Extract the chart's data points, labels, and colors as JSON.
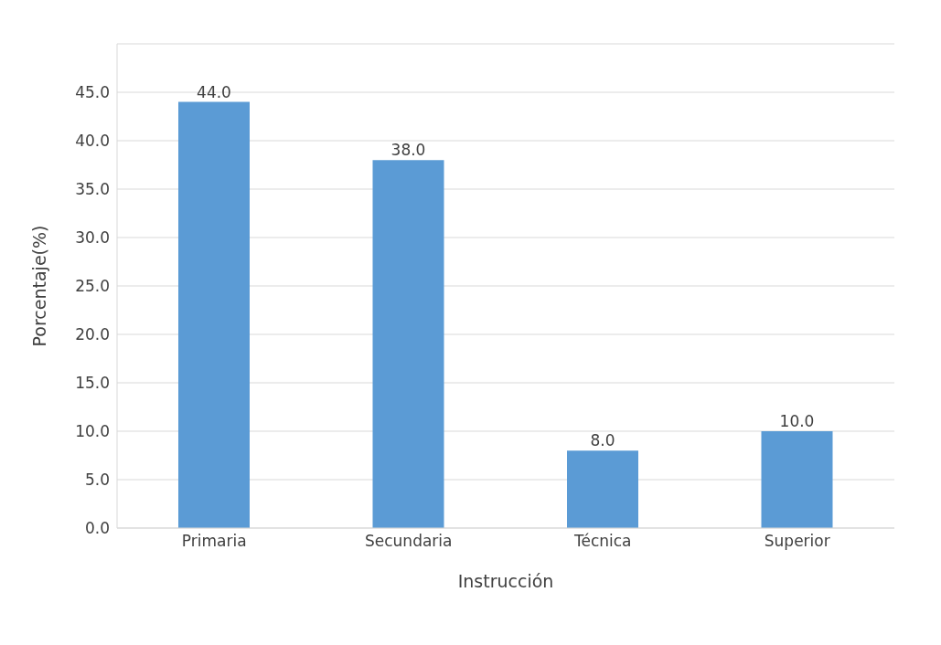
{
  "chart_data": {
    "type": "bar",
    "xlabel": "Instrucción",
    "ylabel": "Porcentaje(%)",
    "categories": [
      "Primaria",
      "Secundaria",
      "Técnica",
      "Superior"
    ],
    "values": [
      44,
      38,
      8,
      10
    ],
    "value_labels": [
      "44.0",
      "38.0",
      "8.0",
      "10.0"
    ],
    "color": "#5b9bd5",
    "ylim": [
      0,
      50
    ],
    "yticks": [
      {
        "value": 0,
        "label": "0.0"
      },
      {
        "value": 5,
        "label": "5.0"
      },
      {
        "value": 10,
        "label": "10.0"
      },
      {
        "value": 15,
        "label": "15.0"
      },
      {
        "value": 20,
        "label": "20.0"
      },
      {
        "value": 25,
        "label": "25.0"
      },
      {
        "value": 30,
        "label": "30.0"
      },
      {
        "value": 35,
        "label": "35.0"
      },
      {
        "value": 40,
        "label": "40.0"
      },
      {
        "value": 45,
        "label": "45.0"
      }
    ],
    "grid": "y",
    "legend": false
  }
}
